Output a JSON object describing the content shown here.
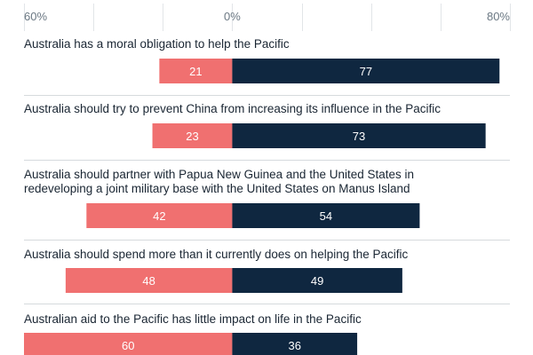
{
  "chart_data": {
    "type": "bar",
    "orientation": "horizontal-diverging",
    "x_axis": {
      "min": -60,
      "max": 80,
      "tick_labels": [
        {
          "value": -60,
          "label": "60%"
        },
        {
          "value": 0,
          "label": "0%"
        },
        {
          "value": 80,
          "label": "80%"
        }
      ],
      "grid_values": [
        -60,
        -40,
        -20,
        0,
        20,
        40,
        60,
        80
      ]
    },
    "categories": [
      "Australia has a moral obligation to help the Pacific",
      "Australia should try to prevent China from increasing its influence in the Pacific",
      "Australia should partner with Papua New Guinea and the United States in redeveloping a joint military base with the United States on Manus Island",
      "Australia should spend more than it currently does on helping the Pacific",
      "Australian aid to the Pacific has little impact on life in the Pacific"
    ],
    "category_lines": [
      [
        "Australia has a moral obligation to help the Pacific"
      ],
      [
        "Australia should try to prevent China from increasing its influence in the Pacific"
      ],
      [
        "Australia should partner with Papua New Guinea and the United States in",
        "redeveloping a joint military base with the United States on Manus Island"
      ],
      [
        "Australia should spend more than it currently does on helping the Pacific"
      ],
      [
        "Australian aid to the Pacific has little impact on life in the Pacific"
      ]
    ],
    "series": [
      {
        "color": "#f07070",
        "direction": "left",
        "values": [
          21,
          23,
          42,
          48,
          60
        ]
      },
      {
        "color": "#0f2740",
        "direction": "right",
        "values": [
          77,
          73,
          54,
          49,
          36
        ]
      }
    ],
    "grid": true,
    "legend": "none"
  }
}
